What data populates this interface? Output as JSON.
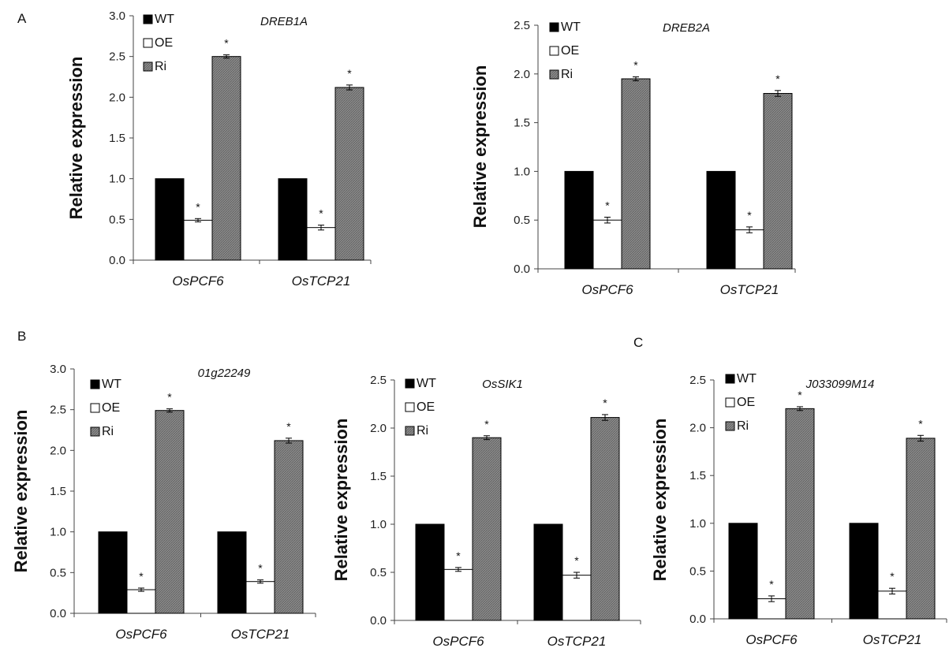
{
  "panels": {
    "a": "A",
    "b": "B",
    "c": "C"
  },
  "chart_data": [
    {
      "type": "bar",
      "title": "DREB1A",
      "ylabel": "Relative expression",
      "ylim": [
        0,
        3.0
      ],
      "yticks": [
        "0.0",
        "0.5",
        "1.0",
        "1.5",
        "2.0",
        "2.5",
        "3.0"
      ],
      "categories": [
        "OsPCF6",
        "OsTCP21"
      ],
      "series": [
        {
          "name": "WT",
          "values": [
            1.0,
            1.0
          ],
          "errors": [
            0,
            0
          ],
          "sig": [
            "",
            ""
          ]
        },
        {
          "name": "OE",
          "values": [
            0.49,
            0.4
          ],
          "errors": [
            0.02,
            0.03
          ],
          "sig": [
            "*",
            "*"
          ]
        },
        {
          "name": "Ri",
          "values": [
            2.5,
            2.12
          ],
          "errors": [
            0.02,
            0.03
          ],
          "sig": [
            "*",
            "*"
          ]
        }
      ],
      "legend": "top-left"
    },
    {
      "type": "bar",
      "title": "DREB2A",
      "ylabel": "Relative expression",
      "ylim": [
        0,
        2.5
      ],
      "yticks": [
        "0.0",
        "0.5",
        "1.0",
        "1.5",
        "2.0",
        "2.5"
      ],
      "categories": [
        "OsPCF6",
        "OsTCP21"
      ],
      "series": [
        {
          "name": "WT",
          "values": [
            1.0,
            1.0
          ],
          "errors": [
            0,
            0
          ],
          "sig": [
            "",
            ""
          ]
        },
        {
          "name": "OE",
          "values": [
            0.5,
            0.4
          ],
          "errors": [
            0.03,
            0.03
          ],
          "sig": [
            "*",
            "*"
          ]
        },
        {
          "name": "Ri",
          "values": [
            1.95,
            1.8
          ],
          "errors": [
            0.02,
            0.03
          ],
          "sig": [
            "*",
            "*"
          ]
        }
      ],
      "legend": "top-left"
    },
    {
      "type": "bar",
      "title": "01g22249",
      "ylabel": "Relative expression",
      "ylim": [
        0,
        3.0
      ],
      "yticks": [
        "0.0",
        "0.5",
        "1.0",
        "1.5",
        "2.0",
        "2.5",
        "3.0"
      ],
      "categories": [
        "OsPCF6",
        "OsTCP21"
      ],
      "series": [
        {
          "name": "WT",
          "values": [
            1.0,
            1.0
          ],
          "errors": [
            0,
            0
          ],
          "sig": [
            "",
            ""
          ]
        },
        {
          "name": "OE",
          "values": [
            0.29,
            0.39
          ],
          "errors": [
            0.02,
            0.02
          ],
          "sig": [
            "*",
            "*"
          ]
        },
        {
          "name": "Ri",
          "values": [
            2.49,
            2.12
          ],
          "errors": [
            0.02,
            0.03
          ],
          "sig": [
            "*",
            "*"
          ]
        }
      ],
      "legend": "top-left"
    },
    {
      "type": "bar",
      "title": "OsSIK1",
      "ylabel": "Relative expression",
      "ylim": [
        0,
        2.5
      ],
      "yticks": [
        "0.0",
        "0.5",
        "1.0",
        "1.5",
        "2.0",
        "2.5"
      ],
      "categories": [
        "OsPCF6",
        "OsTCP21"
      ],
      "series": [
        {
          "name": "WT",
          "values": [
            1.0,
            1.0
          ],
          "errors": [
            0,
            0
          ],
          "sig": [
            "",
            ""
          ]
        },
        {
          "name": "OE",
          "values": [
            0.53,
            0.47
          ],
          "errors": [
            0.02,
            0.03
          ],
          "sig": [
            "*",
            "*"
          ]
        },
        {
          "name": "Ri",
          "values": [
            1.9,
            2.11
          ],
          "errors": [
            0.02,
            0.03
          ],
          "sig": [
            "*",
            "*"
          ]
        }
      ],
      "legend": "top-left"
    },
    {
      "type": "bar",
      "title": "J033099M14",
      "ylabel": "Relative expression",
      "ylim": [
        0,
        2.5
      ],
      "yticks": [
        "0.0",
        "0.5",
        "1.0",
        "1.5",
        "2.0",
        "2.5"
      ],
      "categories": [
        "OsPCF6",
        "OsTCP21"
      ],
      "series": [
        {
          "name": "WT",
          "values": [
            1.0,
            1.0
          ],
          "errors": [
            0,
            0
          ],
          "sig": [
            "",
            ""
          ]
        },
        {
          "name": "OE",
          "values": [
            0.21,
            0.29
          ],
          "errors": [
            0.03,
            0.03
          ],
          "sig": [
            "*",
            "*"
          ]
        },
        {
          "name": "Ri",
          "values": [
            2.2,
            1.89
          ],
          "errors": [
            0.02,
            0.03
          ],
          "sig": [
            "*",
            "*"
          ]
        }
      ],
      "legend": "top-left"
    }
  ]
}
